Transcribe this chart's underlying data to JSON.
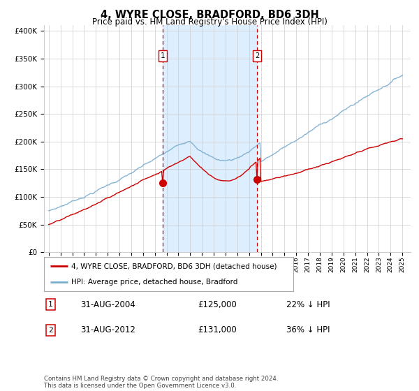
{
  "title": "4, WYRE CLOSE, BRADFORD, BD6 3DH",
  "subtitle": "Price paid vs. HM Land Registry's House Price Index (HPI)",
  "ylabel_ticks": [
    "£0",
    "£50K",
    "£100K",
    "£150K",
    "£200K",
    "£250K",
    "£300K",
    "£350K",
    "£400K"
  ],
  "ylim": [
    0,
    410000
  ],
  "sale1_date": 2004.667,
  "sale1_price": 125000,
  "sale2_date": 2012.667,
  "sale2_price": 131000,
  "red_line_color": "#cc0000",
  "blue_line_color": "#7aadce",
  "shade_color": "#ddeeff",
  "vline_color": "#cc0000",
  "marker_color": "#cc0000",
  "legend_entry1": "4, WYRE CLOSE, BRADFORD, BD6 3DH (detached house)",
  "legend_entry2": "HPI: Average price, detached house, Bradford",
  "table_row1_date": "31-AUG-2004",
  "table_row1_price": "£125,000",
  "table_row1_hpi": "22% ↓ HPI",
  "table_row2_date": "31-AUG-2012",
  "table_row2_price": "£131,000",
  "table_row2_hpi": "36% ↓ HPI",
  "footer": "Contains HM Land Registry data © Crown copyright and database right 2024.\nThis data is licensed under the Open Government Licence v3.0.",
  "background_color": "#ffffff",
  "grid_color": "#cccccc"
}
